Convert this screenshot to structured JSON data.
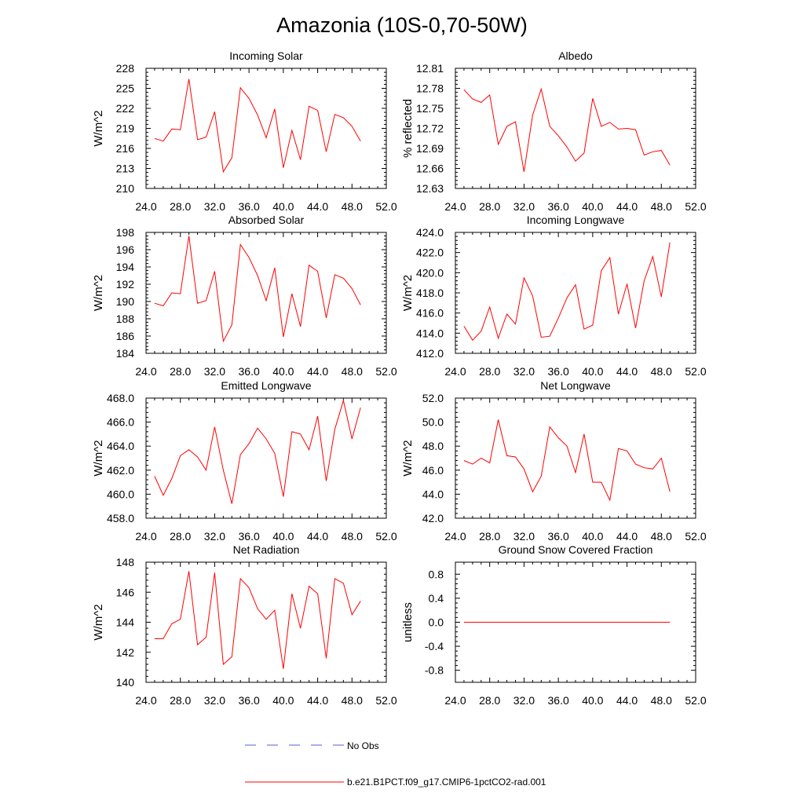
{
  "figure": {
    "title": "Amazonia (10S-0,70-50W)",
    "line_color": "#ff0000",
    "obs_color": "#5a5ad6",
    "legend": {
      "obs_label": "No Obs",
      "model_label": "b.e21.B1PCT.f09_g17.CMIP6-1pctCO2-rad.001"
    }
  },
  "chart_data": [
    {
      "type": "line",
      "title": "Incoming Solar",
      "ylabel": "W/m^2",
      "xlim": [
        24,
        52
      ],
      "xticks": [
        "24.0",
        "28.0",
        "32.0",
        "36.0",
        "40.0",
        "44.0",
        "48.0",
        "52.0"
      ],
      "ylim": [
        210,
        228
      ],
      "yticks": [
        "210",
        "213",
        "216",
        "219",
        "222",
        "225",
        "228"
      ],
      "series": [
        {
          "x": [
            25,
            26,
            27,
            28,
            29,
            30,
            31,
            32,
            33,
            34,
            35,
            36,
            37,
            38,
            39,
            40,
            41,
            42,
            43,
            44,
            45,
            46,
            47,
            48,
            49
          ],
          "values": [
            217.5,
            217.1,
            218.9,
            218.8,
            226.4,
            217.3,
            217.7,
            221.5,
            212.5,
            214.6,
            225.1,
            223.5,
            221.0,
            217.6,
            221.9,
            213.1,
            218.7,
            214.3,
            222.3,
            221.7,
            215.5,
            221.1,
            220.6,
            219.3,
            217.1
          ]
        }
      ]
    },
    {
      "type": "line",
      "title": "Albedo",
      "ylabel": "% reflected",
      "xlim": [
        24,
        52
      ],
      "xticks": [
        "24.0",
        "28.0",
        "32.0",
        "36.0",
        "40.0",
        "44.0",
        "48.0",
        "52.0"
      ],
      "ylim": [
        12.63,
        12.81
      ],
      "yticks": [
        "12.63",
        "12.66",
        "12.69",
        "12.72",
        "12.75",
        "12.78",
        "12.81"
      ],
      "series": [
        {
          "x": [
            25,
            26,
            27,
            28,
            29,
            30,
            31,
            32,
            33,
            34,
            35,
            36,
            37,
            38,
            39,
            40,
            41,
            42,
            43,
            44,
            45,
            46,
            47,
            48,
            49
          ],
          "values": [
            12.778,
            12.764,
            12.759,
            12.77,
            12.696,
            12.723,
            12.73,
            12.655,
            12.74,
            12.779,
            12.723,
            12.709,
            12.692,
            12.671,
            12.683,
            12.765,
            12.723,
            12.729,
            12.719,
            12.72,
            12.718,
            12.68,
            12.685,
            12.687,
            12.665
          ]
        }
      ]
    },
    {
      "type": "line",
      "title": "Absorbed Solar",
      "ylabel": "W/m^2",
      "xlim": [
        24,
        52
      ],
      "xticks": [
        "24.0",
        "28.0",
        "32.0",
        "36.0",
        "40.0",
        "44.0",
        "48.0",
        "52.0"
      ],
      "ylim": [
        184,
        198
      ],
      "yticks": [
        "184",
        "186",
        "188",
        "190",
        "192",
        "194",
        "196",
        "198"
      ],
      "series": [
        {
          "x": [
            25,
            26,
            27,
            28,
            29,
            30,
            31,
            32,
            33,
            34,
            35,
            36,
            37,
            38,
            39,
            40,
            41,
            42,
            43,
            44,
            45,
            46,
            47,
            48,
            49
          ],
          "values": [
            189.8,
            189.5,
            191.0,
            190.9,
            197.6,
            189.8,
            190.1,
            193.5,
            185.4,
            187.3,
            196.6,
            195.1,
            193.0,
            190.1,
            193.9,
            185.9,
            190.9,
            187.1,
            194.2,
            193.5,
            188.1,
            193.1,
            192.7,
            191.5,
            189.6
          ]
        }
      ]
    },
    {
      "type": "line",
      "title": "Incoming Longwave",
      "ylabel": "W/m^2",
      "xlim": [
        24,
        52
      ],
      "xticks": [
        "24.0",
        "28.0",
        "32.0",
        "36.0",
        "40.0",
        "44.0",
        "48.0",
        "52.0"
      ],
      "ylim": [
        412,
        424
      ],
      "yticks": [
        "412.0",
        "414.0",
        "416.0",
        "418.0",
        "420.0",
        "422.0",
        "424.0"
      ],
      "series": [
        {
          "x": [
            25,
            26,
            27,
            28,
            29,
            30,
            31,
            32,
            33,
            34,
            35,
            36,
            37,
            38,
            39,
            40,
            41,
            42,
            43,
            44,
            45,
            46,
            47,
            48,
            49
          ],
          "values": [
            414.7,
            413.3,
            414.2,
            416.6,
            413.5,
            415.9,
            414.9,
            419.5,
            417.7,
            413.6,
            413.7,
            415.5,
            417.5,
            418.8,
            414.4,
            414.8,
            420.2,
            421.5,
            415.9,
            418.9,
            414.5,
            419.2,
            421.6,
            417.6,
            423.0
          ]
        }
      ]
    },
    {
      "type": "line",
      "title": "Emitted Longwave",
      "ylabel": "W/m^2",
      "xlim": [
        24,
        52
      ],
      "xticks": [
        "24.0",
        "28.0",
        "32.0",
        "36.0",
        "40.0",
        "44.0",
        "48.0",
        "52.0"
      ],
      "ylim": [
        458,
        468
      ],
      "yticks": [
        "458.0",
        "460.0",
        "462.0",
        "464.0",
        "466.0",
        "468.0"
      ],
      "series": [
        {
          "x": [
            25,
            26,
            27,
            28,
            29,
            30,
            31,
            32,
            33,
            34,
            35,
            36,
            37,
            38,
            39,
            40,
            41,
            42,
            43,
            44,
            45,
            46,
            47,
            48,
            49
          ],
          "values": [
            461.5,
            459.9,
            461.3,
            463.2,
            463.7,
            463.1,
            462.0,
            465.6,
            462.0,
            459.2,
            463.3,
            464.2,
            465.5,
            464.6,
            463.4,
            459.8,
            465.2,
            465.0,
            463.7,
            466.5,
            461.1,
            465.4,
            467.8,
            464.6,
            467.2
          ]
        }
      ]
    },
    {
      "type": "line",
      "title": "Net Longwave",
      "ylabel": "W/m^2",
      "xlim": [
        24,
        52
      ],
      "xticks": [
        "24.0",
        "28.0",
        "32.0",
        "36.0",
        "40.0",
        "44.0",
        "48.0",
        "52.0"
      ],
      "ylim": [
        42,
        52
      ],
      "yticks": [
        "42.0",
        "44.0",
        "46.0",
        "48.0",
        "50.0",
        "52.0"
      ],
      "series": [
        {
          "x": [
            25,
            26,
            27,
            28,
            29,
            30,
            31,
            32,
            33,
            34,
            35,
            36,
            37,
            38,
            39,
            40,
            41,
            42,
            43,
            44,
            45,
            46,
            47,
            48,
            49
          ],
          "values": [
            46.8,
            46.5,
            47.0,
            46.6,
            50.2,
            47.2,
            47.1,
            46.1,
            44.2,
            45.5,
            49.6,
            48.7,
            48.0,
            45.8,
            49.0,
            45.0,
            45.0,
            43.5,
            47.8,
            47.6,
            46.5,
            46.2,
            46.1,
            47.0,
            44.2
          ]
        }
      ]
    },
    {
      "type": "line",
      "title": "Net Radiation",
      "ylabel": "W/m^2",
      "xlim": [
        24,
        52
      ],
      "xticks": [
        "24.0",
        "28.0",
        "32.0",
        "36.0",
        "40.0",
        "44.0",
        "48.0",
        "52.0"
      ],
      "ylim": [
        140,
        148
      ],
      "yticks": [
        "140",
        "142",
        "144",
        "146",
        "148"
      ],
      "series": [
        {
          "x": [
            25,
            26,
            27,
            28,
            29,
            30,
            31,
            32,
            33,
            34,
            35,
            36,
            37,
            38,
            39,
            40,
            41,
            42,
            43,
            44,
            45,
            46,
            47,
            48,
            49
          ],
          "values": [
            142.9,
            142.9,
            143.9,
            144.2,
            147.4,
            142.5,
            143.0,
            147.3,
            141.2,
            141.7,
            146.9,
            146.3,
            144.9,
            144.2,
            144.8,
            140.9,
            145.9,
            143.6,
            146.4,
            145.9,
            141.6,
            146.9,
            146.6,
            144.5,
            145.4
          ]
        }
      ]
    },
    {
      "type": "line",
      "title": "Ground Snow Covered Fraction",
      "ylabel": "unitless",
      "xlim": [
        24,
        52
      ],
      "xticks": [
        "24.0",
        "28.0",
        "32.0",
        "36.0",
        "40.0",
        "44.0",
        "48.0",
        "52.0"
      ],
      "ylim": [
        -1.0,
        1.0
      ],
      "yticks": [
        "-0.8",
        "-0.4",
        "0.0",
        "0.4",
        "0.8"
      ],
      "yticks_at": [
        -0.8,
        -0.4,
        0.0,
        0.4,
        0.8
      ],
      "series": [
        {
          "x": [
            25,
            26,
            27,
            28,
            29,
            30,
            31,
            32,
            33,
            34,
            35,
            36,
            37,
            38,
            39,
            40,
            41,
            42,
            43,
            44,
            45,
            46,
            47,
            48,
            49
          ],
          "values": [
            0,
            0,
            0,
            0,
            0,
            0,
            0,
            0,
            0,
            0,
            0,
            0,
            0,
            0,
            0,
            0,
            0,
            0,
            0,
            0,
            0,
            0,
            0,
            0,
            0
          ]
        }
      ]
    }
  ]
}
